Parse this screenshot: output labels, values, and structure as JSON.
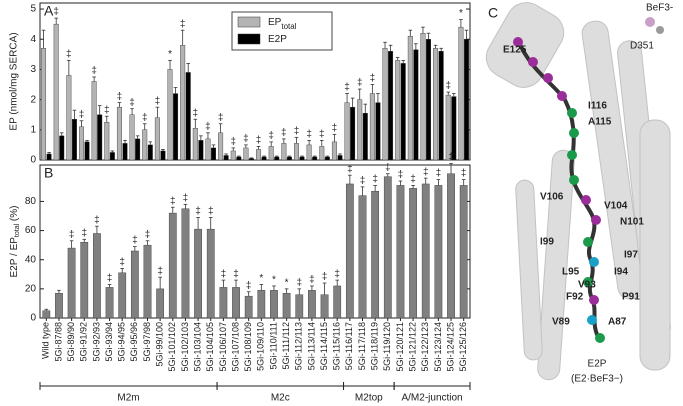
{
  "chart_data": [
    {
      "type": "grouped_bar_error",
      "panel": "A",
      "ylabel": "EP (nmol/mg SERCA)",
      "ylim": [
        0,
        5.2
      ],
      "yticks": [
        0,
        1,
        2,
        3,
        4,
        5
      ],
      "series": [
        {
          "name": "EP",
          "name_sub": "total",
          "color": "#b4b4b4",
          "values": [
            3.7,
            4.5,
            2.8,
            1.1,
            2.6,
            1.25,
            1.75,
            1.5,
            1.0,
            1.4,
            3.0,
            3.8,
            1.05,
            0.7,
            0.9,
            0.3,
            0.4,
            0.35,
            0.45,
            0.55,
            0.55,
            0.5,
            0.45,
            0.6,
            1.9,
            2.0,
            2.2,
            3.7,
            3.3,
            4.1,
            4.2,
            3.7,
            2.15,
            4.4
          ],
          "errors": [
            0.6,
            0.2,
            0.5,
            0.2,
            0.15,
            0.2,
            0.15,
            0.2,
            0.2,
            0.35,
            0.3,
            0.5,
            0.3,
            0.2,
            0.3,
            0.1,
            0.1,
            0.1,
            0.15,
            0.15,
            0.2,
            0.15,
            0.2,
            0.25,
            0.3,
            0.35,
            0.3,
            0.2,
            0.1,
            0.2,
            0.2,
            0.1,
            0.1,
            0.25
          ]
        },
        {
          "name": "E2P",
          "color": "#000000",
          "values": [
            0.2,
            0.8,
            1.35,
            0.6,
            1.5,
            0.25,
            0.55,
            0.7,
            0.5,
            0.3,
            2.2,
            2.9,
            0.65,
            0.4,
            0.15,
            0.1,
            0.05,
            0.1,
            0.1,
            0.1,
            0.1,
            0.1,
            0.1,
            0.15,
            1.75,
            1.55,
            1.9,
            3.6,
            3.2,
            3.65,
            4.0,
            3.6,
            2.1,
            4.0
          ],
          "errors": [
            0.05,
            0.1,
            0.3,
            0.05,
            0.3,
            0.05,
            0.1,
            0.1,
            0.1,
            0.05,
            0.2,
            0.3,
            0.15,
            0.1,
            0.05,
            0.03,
            0.02,
            0.03,
            0.03,
            0.03,
            0.03,
            0.03,
            0.03,
            0.05,
            0.3,
            0.3,
            0.3,
            0.2,
            0.1,
            0.2,
            0.2,
            0.1,
            0.1,
            0.3
          ]
        }
      ],
      "markers": [
        null,
        "‡",
        "‡",
        "‡",
        "‡",
        "‡",
        "‡",
        "‡",
        "‡",
        "‡",
        "*",
        "‡",
        "‡",
        "‡",
        "‡",
        "‡",
        "‡",
        "‡",
        "‡",
        "‡",
        "‡",
        "‡",
        "‡",
        "‡",
        "‡",
        "‡",
        "‡",
        null,
        null,
        null,
        null,
        null,
        "‡",
        "*"
      ]
    },
    {
      "type": "bar_error",
      "panel": "B",
      "ylabel": [
        "E2P / EP",
        "total",
        " (%)"
      ],
      "ylim": [
        0,
        105
      ],
      "yticks": [
        0,
        20,
        40,
        60,
        80
      ],
      "color": "#808080",
      "categories": [
        "Wild type",
        "5Gi-87/88",
        "5Gi-89/90",
        "5Gi-91/92",
        "5Gi-92/93",
        "5Gi-93/94",
        "5Gi-94/95",
        "5Gi-95/96",
        "5Gi-97/98",
        "5Gi-99/100",
        "5Gi-101/102",
        "5Gi-102/103",
        "5Gi-103/104",
        "5Gi-104/105",
        "5Gi-106/107",
        "5Gi-107/108",
        "5Gi-108/109",
        "5Gi-109/110",
        "5Gi-110/111",
        "5Gi-111/112",
        "5Gi-112/113",
        "5Gi-113/114",
        "5Gi-114/115",
        "5Gi-115/116",
        "5Gi-116/117",
        "5Gi-117/118",
        "5Gi-118/119",
        "5Gi-119/120",
        "5Gi-120/121",
        "5Gi-121/122",
        "5Gi-122/123",
        "5Gi-123/124",
        "5Gi-124/125",
        "5Gi-125/126"
      ],
      "values": [
        5,
        17,
        48,
        52,
        58,
        21,
        31,
        46,
        50,
        20,
        72,
        75,
        61,
        61,
        21,
        21,
        15,
        19,
        19,
        17,
        16,
        19,
        16,
        22,
        92,
        84,
        87,
        97,
        91,
        89,
        92,
        91,
        99,
        91
      ],
      "errors": [
        1,
        2,
        5,
        2,
        5,
        2,
        3,
        3,
        3,
        8,
        4,
        3,
        8,
        8,
        5,
        5,
        3,
        4,
        3,
        3,
        4,
        3,
        8,
        4,
        6,
        6,
        4,
        2,
        3,
        2,
        4,
        4,
        7,
        4
      ],
      "markers": [
        null,
        null,
        "‡",
        "‡",
        "‡",
        "‡",
        "‡",
        "‡",
        "‡",
        "‡",
        "‡",
        "‡",
        "‡",
        "‡",
        "‡",
        "‡",
        "‡",
        "*",
        "*",
        "*",
        "‡",
        "‡",
        "‡",
        "‡",
        "‡",
        "‡",
        "‡",
        "‡",
        "‡",
        "‡",
        "‡",
        "‡",
        "‡",
        "‡"
      ],
      "groups": [
        {
          "label": "M2m",
          "from": "Wild type",
          "to": "5Gi-104/105"
        },
        {
          "label": "M2c",
          "from": "5Gi-106/107",
          "to": "5Gi-115/116"
        },
        {
          "label": "M2top",
          "from": "5Gi-116/117",
          "to": "5Gi-119/120"
        },
        {
          "label": "A/M2-junction",
          "from": "5Gi-120/121",
          "to": "5Gi-125/126"
        }
      ]
    }
  ],
  "structure": {
    "panel": "C",
    "ligand": "BeF3-",
    "site": "D351",
    "state": "E2P",
    "state_detail": "(E2·BeF3−)",
    "residues": [
      {
        "text": "E125",
        "color": "#9b2d9b"
      },
      {
        "text": "I116",
        "color": "#9b2d9b"
      },
      {
        "text": "A115",
        "color": "#1a9a4a"
      },
      {
        "text": "V106",
        "color": "#1a9a4a"
      },
      {
        "text": "V104",
        "color": "#9b2d9b"
      },
      {
        "text": "N101",
        "color": "#9b2d9b"
      },
      {
        "text": "I99",
        "color": "#1a9a4a"
      },
      {
        "text": "I97",
        "color": "#9b2d9b"
      },
      {
        "text": "L95",
        "color": "#1aa0c8"
      },
      {
        "text": "I94",
        "color": "#1aa0c8"
      },
      {
        "text": "V93",
        "color": "#1a9a4a"
      },
      {
        "text": "F92",
        "color": "#9b2d9b"
      },
      {
        "text": "P91",
        "color": "#9b2d9b"
      },
      {
        "text": "V89",
        "color": "#1aa0c8"
      },
      {
        "text": "A87",
        "color": "#1a9a4a"
      }
    ]
  }
}
